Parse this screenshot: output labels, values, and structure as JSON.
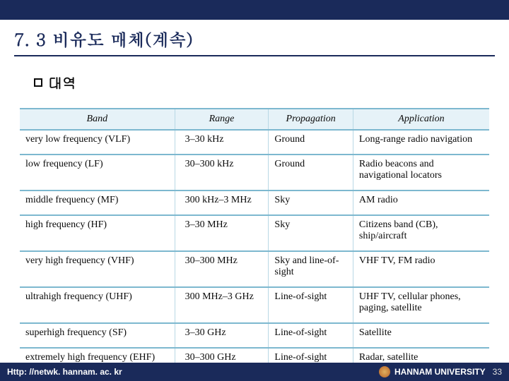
{
  "title": "7. 3 비유도 매체(계속)",
  "subtitle": "대역",
  "table": {
    "headers": [
      "Band",
      "Range",
      "Propagation",
      "Application"
    ],
    "rows": [
      {
        "band": "very low frequency (VLF)",
        "range": "3–30 kHz",
        "propagation": "Ground",
        "application": "Long-range radio navigation"
      },
      {
        "band": "low frequency (LF)",
        "range": "30–300 kHz",
        "propagation": "Ground",
        "application": "Radio beacons and navigational locators"
      },
      {
        "band": "middle frequency (MF)",
        "range": "300 kHz–3 MHz",
        "propagation": "Sky",
        "application": "AM radio"
      },
      {
        "band": "high frequency (HF)",
        "range": "3–30 MHz",
        "propagation": "Sky",
        "application": "Citizens band (CB), ship/aircraft"
      },
      {
        "band": "very high frequency (VHF)",
        "range": "30–300 MHz",
        "propagation": "Sky and line-of-sight",
        "application": "VHF TV, FM radio"
      },
      {
        "band": "ultrahigh frequency (UHF)",
        "range": "300 MHz–3 GHz",
        "propagation": "Line-of-sight",
        "application": "UHF TV, cellular phones, paging, satellite"
      },
      {
        "band": "superhigh frequency (SF)",
        "range": "3–30 GHz",
        "propagation": "Line-of-sight",
        "application": "Satellite"
      },
      {
        "band": "extremely high frequency (EHF)",
        "range": "30–300 GHz",
        "propagation": "Line-of-sight",
        "application": "Radar, satellite"
      }
    ]
  },
  "footer": {
    "url": "Http: //netwk. hannam. ac. kr",
    "org": "HANNAM  UNIVERSITY",
    "page": "33"
  },
  "colors": {
    "navy": "#1a2a5a",
    "header_bg": "#e6f2f8",
    "border_strong": "#7db8cf",
    "border_light": "#b8d8e5"
  }
}
